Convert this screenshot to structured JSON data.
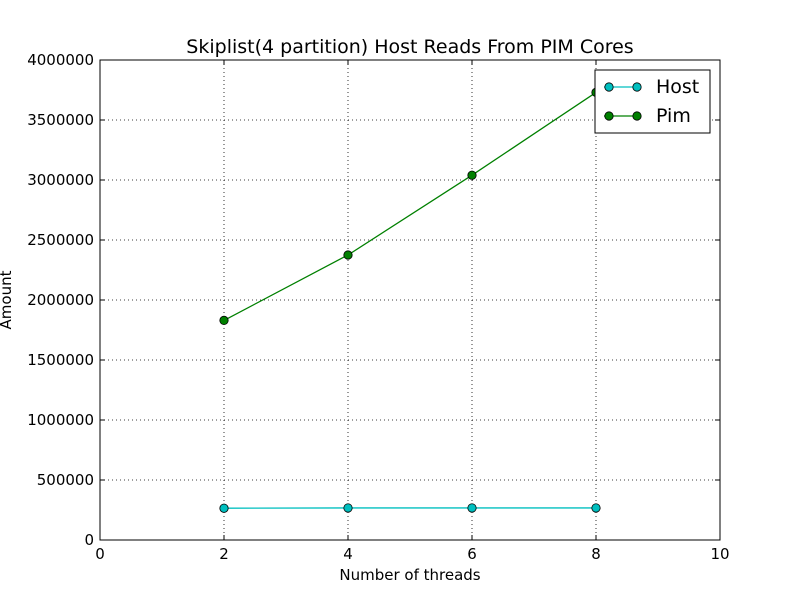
{
  "chart_data": {
    "type": "line",
    "title": "Skiplist(4 partition) Host Reads From PIM Cores",
    "xlabel": "Number of threads",
    "ylabel": "Amount",
    "xlim": [
      0,
      10
    ],
    "ylim": [
      0,
      4000000
    ],
    "x_ticks": [
      0,
      2,
      4,
      6,
      8,
      10
    ],
    "y_ticks": [
      0,
      500000,
      1000000,
      1500000,
      2000000,
      2500000,
      3000000,
      3500000,
      4000000
    ],
    "grid": true,
    "legend_position": "top-right",
    "x": [
      2,
      4,
      6,
      8
    ],
    "series": [
      {
        "name": "Host",
        "color": "#00bfbf",
        "values": [
          265000,
          267000,
          267000,
          267000
        ]
      },
      {
        "name": "Pim",
        "color": "#008000",
        "values": [
          1830000,
          2375000,
          3040000,
          3730000
        ]
      }
    ]
  }
}
